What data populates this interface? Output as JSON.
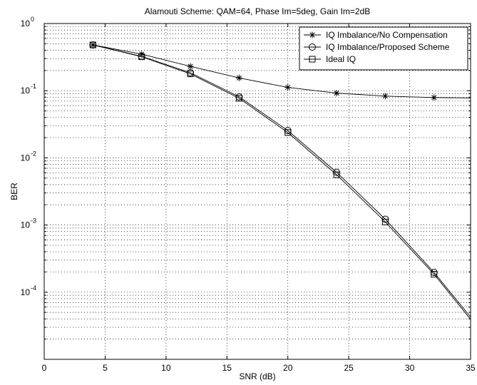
{
  "chart_data": {
    "type": "line",
    "title": "Alamouti Scheme: QAM=64, Phase Im=5deg, Gain Im=2dB",
    "xlabel": "SNR (dB)",
    "ylabel": "BER",
    "xlim": [
      0,
      35
    ],
    "ylim": [
      1e-05,
      1
    ],
    "yscale": "log",
    "grid": true,
    "legend_position": "top-right",
    "x_ticks": [
      0,
      5,
      10,
      15,
      20,
      25,
      30,
      35
    ],
    "y_ticks": [
      {
        "value": 1,
        "base": "10",
        "exp": "0"
      },
      {
        "value": 0.1,
        "base": "10",
        "exp": "-1"
      },
      {
        "value": 0.01,
        "base": "10",
        "exp": "-2"
      },
      {
        "value": 0.001,
        "base": "10",
        "exp": "-3"
      },
      {
        "value": 0.0001,
        "base": "10",
        "exp": "-4"
      }
    ],
    "series": [
      {
        "name": "IQ Imbalance/No Compensation",
        "marker": "star",
        "x": [
          4,
          8,
          12,
          16,
          20,
          24,
          28,
          32,
          35
        ],
        "y": [
          0.48,
          0.35,
          0.23,
          0.155,
          0.112,
          0.092,
          0.083,
          0.079,
          0.078
        ],
        "marker_count": 8
      },
      {
        "name": "IQ Imbalance/Proposed Scheme",
        "marker": "circle",
        "x": [
          4,
          8,
          12,
          16,
          20,
          24,
          28,
          32,
          35
        ],
        "y": [
          0.48,
          0.325,
          0.185,
          0.081,
          0.0255,
          0.0061,
          0.00122,
          0.000197,
          4.27e-05
        ],
        "marker_count": 8
      },
      {
        "name": "Ideal IQ",
        "marker": "square",
        "x": [
          4,
          8,
          12,
          16,
          20,
          24,
          28,
          32,
          35
        ],
        "y": [
          0.48,
          0.32,
          0.178,
          0.077,
          0.0238,
          0.0056,
          0.00111,
          0.000185,
          3.95e-05
        ],
        "marker_count": 8
      }
    ]
  }
}
